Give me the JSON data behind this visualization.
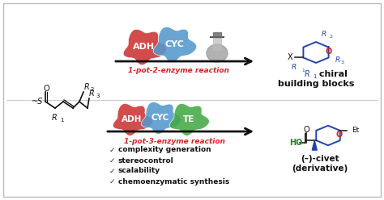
{
  "bg_color": "#ffffff",
  "border_color": "#bbbbbb",
  "adh_color": "#cc3333",
  "cyc_color": "#5599cc",
  "te_color": "#44aa44",
  "arrow_color": "#111111",
  "reaction1_label": "1-pot-2-enzyme reaction",
  "reaction2_label": "1-pot-3-enzyme reaction",
  "reaction_color": "#dd2222",
  "bullet_items": [
    "complexity generation",
    "stereocontrol",
    "scalability",
    "chemoenzymatic synthesis"
  ],
  "chiral_label1": "chiral",
  "chiral_label2": "building blocks",
  "civet_label1": "(–)-civet",
  "civet_label2": "(derivative)",
  "black": "#111111",
  "blue": "#2244aa",
  "green": "#228822",
  "red": "#cc2222",
  "gray": "#888888"
}
